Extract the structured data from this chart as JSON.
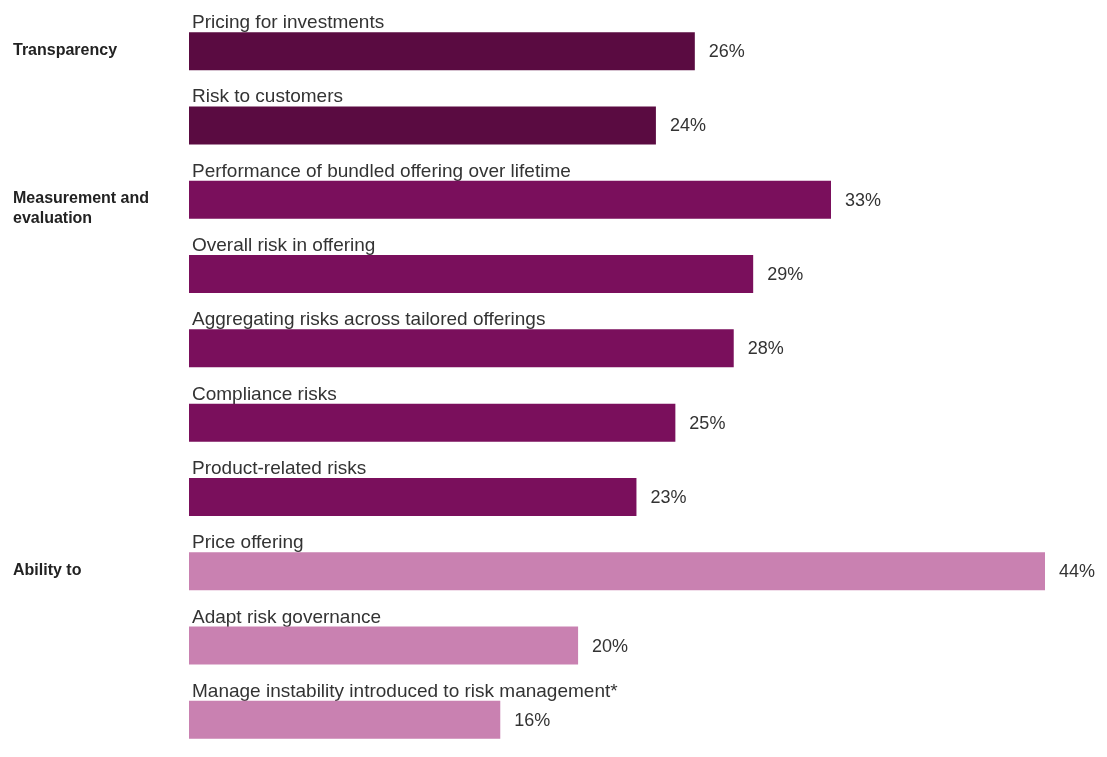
{
  "chart_data": {
    "type": "bar",
    "orientation": "horizontal",
    "categories": [
      "Pricing for investments",
      "Risk to customers",
      "Performance of bundled offering over lifetime",
      "Overall risk in offering",
      "Aggregating risks across tailored offerings",
      "Compliance risks",
      "Product-related risks",
      "Price offering",
      "Adapt risk governance",
      "Manage instability introduced to risk management*"
    ],
    "values": [
      26,
      24,
      33,
      29,
      28,
      25,
      23,
      44,
      20,
      16
    ],
    "value_labels": [
      "26%",
      "24%",
      "33%",
      "29%",
      "28%",
      "25%",
      "23%",
      "44%",
      "20%",
      "16%"
    ],
    "colors": [
      "#5a0b41",
      "#5a0b41",
      "#7a0f5c",
      "#7a0f5c",
      "#7a0f5c",
      "#7a0f5c",
      "#7a0f5c",
      "#c981b1",
      "#c981b1",
      "#c981b1"
    ],
    "xlim": [
      0,
      44
    ],
    "tick_labels": "y",
    "annotations": [
      "Transparency",
      "Measurement and evaluation",
      "Ability to"
    ]
  }
}
